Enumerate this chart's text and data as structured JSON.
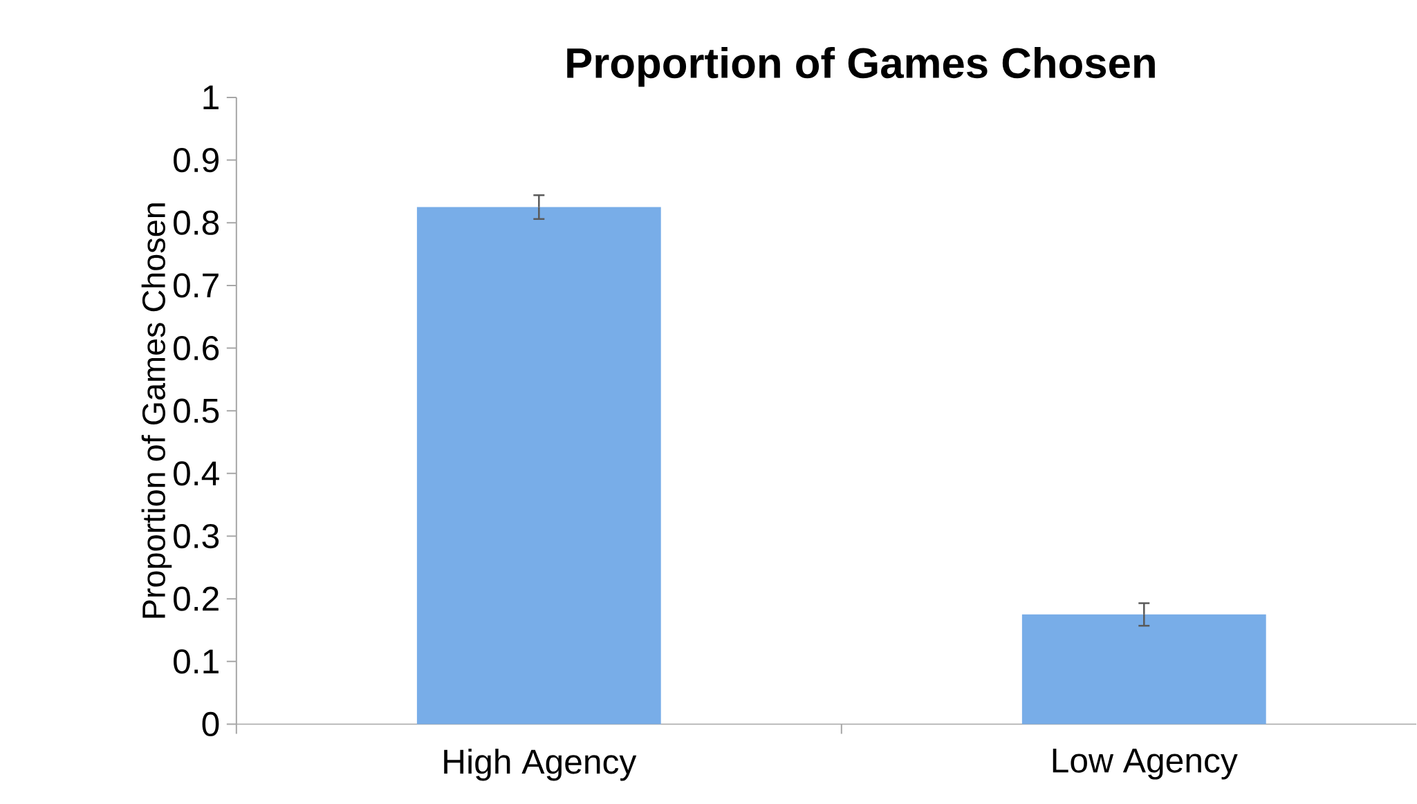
{
  "chart_data": {
    "type": "bar",
    "title": "Proportion of Games Chosen",
    "ylabel": "Proportion of Games Chosen",
    "categories": [
      "High Agency",
      "Low Agency"
    ],
    "values": [
      0.825,
      0.175
    ],
    "errors": [
      0.019,
      0.018
    ],
    "color": "#78ade8",
    "ylim": [
      0,
      1
    ],
    "yticks": [
      0,
      0.1,
      0.2,
      0.3,
      0.4,
      0.5,
      0.6,
      0.7,
      0.8,
      0.9,
      1
    ],
    "grid": false
  }
}
